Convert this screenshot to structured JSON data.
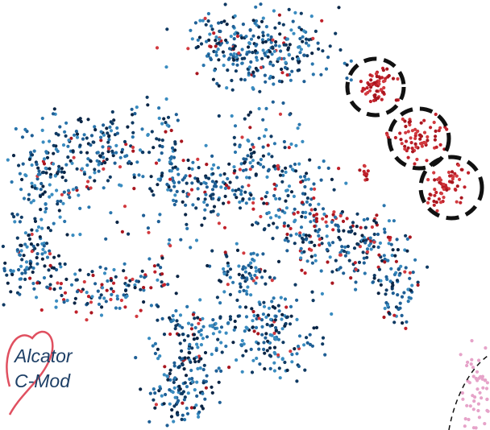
{
  "logo": {
    "line1": "Alcator",
    "line2": "C-Mod"
  }
}
